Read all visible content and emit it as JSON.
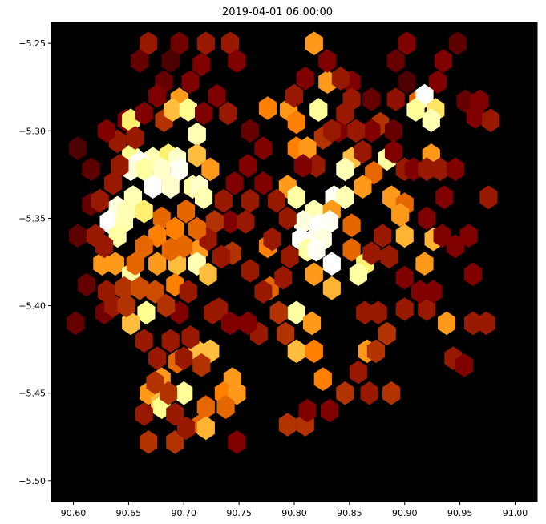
{
  "chart_data": {
    "type": "hexbin",
    "title": "2019-04-01 06:00:00",
    "xlabel": "",
    "ylabel": "",
    "xlim": [
      90.58,
      91.02
    ],
    "ylim": [
      -5.512,
      -5.238
    ],
    "xticks": [
      90.6,
      90.65,
      90.7,
      90.75,
      90.8,
      90.85,
      90.9,
      90.95,
      91.0
    ],
    "xtick_labels": [
      "90.60",
      "90.65",
      "90.70",
      "90.75",
      "90.80",
      "90.85",
      "90.90",
      "90.95",
      "91.00"
    ],
    "yticks": [
      -5.25,
      -5.3,
      -5.35,
      -5.4,
      -5.45,
      -5.5
    ],
    "ytick_labels": [
      "−5.25",
      "−5.30",
      "−5.35",
      "−5.40",
      "−5.45",
      "−5.50"
    ],
    "colormap": "afmhot",
    "background": "#000000",
    "grid": false,
    "hex_spacing_x": 0.00928,
    "hex_spacing_y": 0.01095,
    "hexbins": [
      [
        90.668,
        -5.25,
        0.3
      ],
      [
        90.696,
        -5.25,
        0.22
      ],
      [
        90.72,
        -5.25,
        0.3
      ],
      [
        90.742,
        -5.25,
        0.3
      ],
      [
        90.818,
        -5.25,
        0.55
      ],
      [
        90.902,
        -5.25,
        0.25
      ],
      [
        90.948,
        -5.25,
        0.18
      ],
      [
        90.66,
        -5.26,
        0.2
      ],
      [
        90.688,
        -5.26,
        0.15
      ],
      [
        90.748,
        -5.26,
        0.25
      ],
      [
        90.892,
        -5.26,
        0.2
      ],
      [
        90.935,
        -5.26,
        0.25
      ],
      [
        90.682,
        -5.272,
        0.2
      ],
      [
        90.83,
        -5.272,
        0.55
      ],
      [
        90.852,
        -5.272,
        0.25
      ],
      [
        90.902,
        -5.272,
        0.15
      ],
      [
        90.93,
        -5.272,
        0.25
      ],
      [
        90.696,
        -5.282,
        0.55
      ],
      [
        90.87,
        -5.282,
        0.2
      ],
      [
        90.892,
        -5.282,
        0.28
      ],
      [
        90.912,
        -5.283,
        0.45
      ],
      [
        90.918,
        -5.28,
        1.0
      ],
      [
        90.955,
        -5.283,
        0.2
      ],
      [
        90.968,
        -5.283,
        0.25
      ],
      [
        90.648,
        -5.294,
        0.25
      ],
      [
        90.682,
        -5.294,
        0.35
      ],
      [
        90.69,
        -5.288,
        0.62
      ],
      [
        90.704,
        -5.288,
        0.78
      ],
      [
        90.776,
        -5.287,
        0.5
      ],
      [
        90.795,
        -5.288,
        0.55
      ],
      [
        90.822,
        -5.288,
        0.8
      ],
      [
        90.91,
        -5.288,
        0.8
      ],
      [
        90.928,
        -5.288,
        0.7
      ],
      [
        90.964,
        -5.292,
        0.25
      ],
      [
        90.652,
        -5.294,
        0.72
      ],
      [
        90.802,
        -5.295,
        0.5
      ],
      [
        90.878,
        -5.296,
        0.35
      ],
      [
        90.924,
        -5.294,
        0.85
      ],
      [
        90.978,
        -5.294,
        0.3
      ],
      [
        90.712,
        -5.302,
        0.85
      ],
      [
        90.826,
        -5.304,
        0.35
      ],
      [
        90.89,
        -5.3,
        0.2
      ],
      [
        90.652,
        -5.314,
        0.78
      ],
      [
        90.672,
        -5.316,
        0.85
      ],
      [
        90.686,
        -5.314,
        0.72
      ],
      [
        90.694,
        -5.316,
        0.9
      ],
      [
        90.712,
        -5.314,
        0.62
      ],
      [
        90.802,
        -5.31,
        0.5
      ],
      [
        90.812,
        -5.31,
        0.55
      ],
      [
        90.852,
        -5.316,
        0.62
      ],
      [
        90.884,
        -5.316,
        0.82
      ],
      [
        90.924,
        -5.314,
        0.55
      ],
      [
        90.66,
        -5.318,
        0.98
      ],
      [
        90.652,
        -5.322,
        0.94
      ],
      [
        90.664,
        -5.322,
        0.82
      ],
      [
        90.68,
        -5.322,
        0.9
      ],
      [
        90.696,
        -5.322,
        0.98
      ],
      [
        90.724,
        -5.322,
        0.55
      ],
      [
        90.846,
        -5.322,
        0.85
      ],
      [
        90.872,
        -5.324,
        0.45
      ],
      [
        90.9,
        -5.322,
        0.3
      ],
      [
        90.932,
        -5.322,
        0.3
      ],
      [
        90.672,
        -5.332,
        1.0
      ],
      [
        90.688,
        -5.332,
        0.9
      ],
      [
        90.708,
        -5.332,
        0.82
      ],
      [
        90.714,
        -5.332,
        0.9
      ],
      [
        90.794,
        -5.332,
        0.55
      ],
      [
        90.862,
        -5.332,
        0.55
      ],
      [
        90.654,
        -5.338,
        0.85
      ],
      [
        90.718,
        -5.338,
        0.85
      ],
      [
        90.802,
        -5.338,
        0.82
      ],
      [
        90.836,
        -5.338,
        0.98
      ],
      [
        90.846,
        -5.338,
        0.85
      ],
      [
        90.888,
        -5.338,
        0.55
      ],
      [
        90.9,
        -5.342,
        0.45
      ],
      [
        90.976,
        -5.338,
        0.3
      ],
      [
        90.64,
        -5.344,
        0.94
      ],
      [
        90.648,
        -5.346,
        0.85
      ],
      [
        90.664,
        -5.346,
        0.72
      ],
      [
        90.818,
        -5.346,
        0.85
      ],
      [
        90.834,
        -5.346,
        0.55
      ],
      [
        90.896,
        -5.348,
        0.55
      ],
      [
        90.632,
        -5.352,
        1.0
      ],
      [
        90.646,
        -5.352,
        0.85
      ],
      [
        90.808,
        -5.352,
        0.94
      ],
      [
        90.822,
        -5.354,
        1.0
      ],
      [
        90.832,
        -5.352,
        0.98
      ],
      [
        90.852,
        -5.354,
        0.45
      ],
      [
        90.64,
        -5.36,
        0.82
      ],
      [
        90.806,
        -5.362,
        1.0
      ],
      [
        90.818,
        -5.362,
        0.98
      ],
      [
        90.826,
        -5.362,
        0.94
      ],
      [
        90.9,
        -5.36,
        0.6
      ],
      [
        90.926,
        -5.362,
        0.6
      ],
      [
        90.714,
        -5.368,
        0.55
      ],
      [
        90.776,
        -5.366,
        0.5
      ],
      [
        90.812,
        -5.368,
        0.82
      ],
      [
        90.82,
        -5.368,
        0.98
      ],
      [
        90.852,
        -5.368,
        0.45
      ],
      [
        90.626,
        -5.376,
        0.55
      ],
      [
        90.638,
        -5.376,
        0.55
      ],
      [
        90.676,
        -5.376,
        0.55
      ],
      [
        90.694,
        -5.376,
        0.62
      ],
      [
        90.712,
        -5.376,
        0.85
      ],
      [
        90.834,
        -5.376,
        1.0
      ],
      [
        90.864,
        -5.376,
        0.72
      ],
      [
        90.918,
        -5.376,
        0.55
      ],
      [
        90.652,
        -5.382,
        0.82
      ],
      [
        90.722,
        -5.382,
        0.62
      ],
      [
        90.818,
        -5.382,
        0.55
      ],
      [
        90.858,
        -5.382,
        0.82
      ],
      [
        90.962,
        -5.382,
        0.25
      ],
      [
        90.63,
        -5.392,
        0.3
      ],
      [
        90.692,
        -5.388,
        0.5
      ],
      [
        90.778,
        -5.39,
        0.45
      ],
      [
        90.834,
        -5.39,
        0.6
      ],
      [
        90.666,
        -5.404,
        0.78
      ],
      [
        90.802,
        -5.404,
        0.82
      ],
      [
        90.9,
        -5.402,
        0.3
      ],
      [
        90.92,
        -5.402,
        0.3
      ],
      [
        90.652,
        -5.41,
        0.62
      ],
      [
        90.816,
        -5.41,
        0.55
      ],
      [
        90.938,
        -5.41,
        0.55
      ],
      [
        90.962,
        -5.41,
        0.3
      ],
      [
        90.974,
        -5.41,
        0.3
      ],
      [
        90.712,
        -5.426,
        0.62
      ],
      [
        90.724,
        -5.426,
        0.62
      ],
      [
        90.802,
        -5.426,
        0.62
      ],
      [
        90.818,
        -5.426,
        0.5
      ],
      [
        90.866,
        -5.426,
        0.55
      ],
      [
        90.944,
        -5.43,
        0.3
      ],
      [
        90.694,
        -5.432,
        0.45
      ],
      [
        90.716,
        -5.434,
        0.35
      ],
      [
        90.954,
        -5.434,
        0.25
      ],
      [
        90.68,
        -5.442,
        0.55
      ],
      [
        90.744,
        -5.442,
        0.55
      ],
      [
        90.826,
        -5.442,
        0.5
      ],
      [
        90.668,
        -5.45,
        0.55
      ],
      [
        90.7,
        -5.45,
        0.8
      ],
      [
        90.736,
        -5.45,
        0.5
      ],
      [
        90.748,
        -5.45,
        0.55
      ],
      [
        90.888,
        -5.45,
        0.35
      ],
      [
        90.678,
        -5.456,
        0.62
      ],
      [
        90.68,
        -5.458,
        0.78
      ],
      [
        90.72,
        -5.458,
        0.45
      ],
      [
        90.738,
        -5.458,
        0.45
      ],
      [
        90.716,
        -5.468,
        0.45
      ],
      [
        90.72,
        -5.47,
        0.6
      ],
      [
        90.794,
        -5.468,
        0.35
      ],
      [
        90.81,
        -5.468,
        0.35
      ],
      [
        90.668,
        -5.478,
        0.35
      ],
      [
        90.692,
        -5.478,
        0.35
      ],
      [
        90.748,
        -5.478,
        0.25
      ],
      [
        90.604,
        -5.31,
        0.15
      ],
      [
        90.616,
        -5.322,
        0.18
      ],
      [
        90.616,
        -5.342,
        0.2
      ],
      [
        90.604,
        -5.36,
        0.18
      ],
      [
        90.612,
        -5.388,
        0.2
      ],
      [
        90.602,
        -5.41,
        0.2
      ],
      [
        90.628,
        -5.404,
        0.22
      ],
      [
        90.742,
        -5.352,
        0.25
      ],
      [
        90.756,
        -5.352,
        0.3
      ],
      [
        90.744,
        -5.37,
        0.35
      ],
      [
        90.76,
        -5.38,
        0.3
      ],
      [
        90.772,
        -5.392,
        0.3
      ],
      [
        90.786,
        -5.404,
        0.35
      ],
      [
        90.768,
        -5.416,
        0.3
      ],
      [
        90.792,
        -5.416,
        0.35
      ],
      [
        90.732,
        -5.402,
        0.3
      ],
      [
        90.742,
        -5.41,
        0.25
      ],
      [
        90.758,
        -5.41,
        0.25
      ],
      [
        90.726,
        -5.404,
        0.3
      ],
      [
        90.704,
        -5.392,
        0.3
      ],
      [
        90.696,
        -5.404,
        0.25
      ],
      [
        90.864,
        -5.404,
        0.3
      ],
      [
        90.876,
        -5.404,
        0.3
      ],
      [
        90.884,
        -5.416,
        0.35
      ],
      [
        90.874,
        -5.426,
        0.35
      ],
      [
        90.858,
        -5.438,
        0.3
      ],
      [
        90.868,
        -5.45,
        0.3
      ],
      [
        90.846,
        -5.45,
        0.35
      ],
      [
        90.832,
        -5.46,
        0.25
      ],
      [
        90.812,
        -5.46,
        0.25
      ],
      [
        90.87,
        -5.3,
        0.25
      ],
      [
        90.856,
        -5.3,
        0.3
      ],
      [
        90.84,
        -5.3,
        0.25
      ],
      [
        90.862,
        -5.312,
        0.3
      ],
      [
        90.89,
        -5.312,
        0.25
      ],
      [
        90.908,
        -5.322,
        0.25
      ],
      [
        90.92,
        -5.322,
        0.3
      ],
      [
        90.946,
        -5.322,
        0.25
      ],
      [
        90.936,
        -5.338,
        0.25
      ],
      [
        90.92,
        -5.35,
        0.25
      ],
      [
        90.934,
        -5.36,
        0.25
      ],
      [
        90.946,
        -5.366,
        0.25
      ],
      [
        90.958,
        -5.36,
        0.25
      ],
      [
        90.88,
        -5.36,
        0.3
      ],
      [
        90.87,
        -5.37,
        0.3
      ],
      [
        90.886,
        -5.372,
        0.3
      ],
      [
        90.9,
        -5.384,
        0.25
      ],
      [
        90.914,
        -5.392,
        0.25
      ],
      [
        90.926,
        -5.392,
        0.25
      ],
      [
        90.76,
        -5.34,
        0.3
      ],
      [
        90.772,
        -5.33,
        0.25
      ],
      [
        90.784,
        -5.34,
        0.3
      ],
      [
        90.794,
        -5.35,
        0.3
      ],
      [
        90.78,
        -5.362,
        0.3
      ],
      [
        90.796,
        -5.372,
        0.3
      ],
      [
        90.79,
        -5.384,
        0.3
      ],
      [
        90.76,
        -5.3,
        0.2
      ],
      [
        90.772,
        -5.31,
        0.25
      ],
      [
        90.758,
        -5.32,
        0.25
      ],
      [
        90.746,
        -5.33,
        0.25
      ],
      [
        90.736,
        -5.34,
        0.3
      ],
      [
        90.728,
        -5.352,
        0.35
      ],
      [
        90.722,
        -5.362,
        0.3
      ],
      [
        90.734,
        -5.372,
        0.3
      ],
      [
        90.73,
        -5.28,
        0.25
      ],
      [
        90.74,
        -5.29,
        0.3
      ],
      [
        90.718,
        -5.29,
        0.25
      ],
      [
        90.706,
        -5.272,
        0.25
      ],
      [
        90.716,
        -5.262,
        0.25
      ],
      [
        90.676,
        -5.28,
        0.25
      ],
      [
        90.664,
        -5.29,
        0.25
      ],
      [
        90.656,
        -5.304,
        0.3
      ],
      [
        90.8,
        -5.28,
        0.3
      ],
      [
        90.81,
        -5.27,
        0.25
      ],
      [
        90.83,
        -5.26,
        0.25
      ],
      [
        90.842,
        -5.27,
        0.3
      ],
      [
        90.852,
        -5.282,
        0.3
      ],
      [
        90.846,
        -5.29,
        0.3
      ],
      [
        90.834,
        -5.3,
        0.3
      ],
      [
        90.82,
        -5.32,
        0.3
      ],
      [
        90.808,
        -5.32,
        0.25
      ],
      [
        90.68,
        -5.35,
        0.45
      ],
      [
        90.692,
        -5.356,
        0.5
      ],
      [
        90.702,
        -5.346,
        0.45
      ],
      [
        90.712,
        -5.356,
        0.45
      ],
      [
        90.7,
        -5.366,
        0.45
      ],
      [
        90.688,
        -5.368,
        0.45
      ],
      [
        90.676,
        -5.36,
        0.5
      ],
      [
        90.664,
        -5.366,
        0.45
      ],
      [
        90.656,
        -5.376,
        0.45
      ],
      [
        90.62,
        -5.36,
        0.3
      ],
      [
        90.628,
        -5.366,
        0.3
      ],
      [
        90.624,
        -5.34,
        0.3
      ],
      [
        90.636,
        -5.33,
        0.3
      ],
      [
        90.642,
        -5.32,
        0.3
      ],
      [
        90.64,
        -5.306,
        0.3
      ],
      [
        90.63,
        -5.3,
        0.25
      ],
      [
        90.646,
        -5.39,
        0.35
      ],
      [
        90.636,
        -5.4,
        0.3
      ],
      [
        90.648,
        -5.4,
        0.35
      ],
      [
        90.66,
        -5.39,
        0.4
      ],
      [
        90.674,
        -5.392,
        0.4
      ],
      [
        90.684,
        -5.4,
        0.35
      ],
      [
        90.664,
        -5.42,
        0.3
      ],
      [
        90.676,
        -5.43,
        0.3
      ],
      [
        90.688,
        -5.42,
        0.3
      ],
      [
        90.7,
        -5.43,
        0.3
      ],
      [
        90.706,
        -5.418,
        0.3
      ],
      [
        90.674,
        -5.444,
        0.35
      ],
      [
        90.686,
        -5.45,
        0.35
      ],
      [
        90.692,
        -5.462,
        0.3
      ],
      [
        90.702,
        -5.47,
        0.3
      ],
      [
        90.664,
        -5.462,
        0.3
      ]
    ]
  }
}
